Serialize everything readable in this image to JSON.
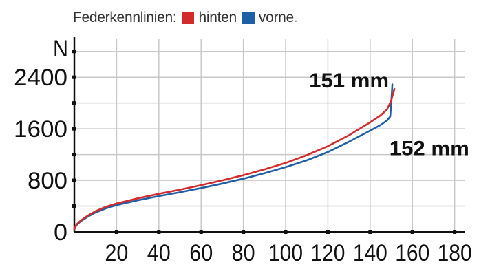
{
  "chart_data": {
    "type": "line",
    "legend_title": "Federkennlinien:",
    "ylabel": "N",
    "xlim": [
      0,
      185
    ],
    "ylim": [
      0,
      3000
    ],
    "x_ticks": [
      20,
      40,
      60,
      80,
      100,
      120,
      140,
      160,
      180
    ],
    "y_ticks": [
      0,
      800,
      1600,
      2400
    ],
    "grid": true,
    "legend_position": "top-left",
    "series": [
      {
        "name": "hinten",
        "color": "#d22b2b",
        "x": [
          0,
          1,
          3,
          6,
          10,
          15,
          20,
          30,
          40,
          50,
          60,
          70,
          80,
          90,
          100,
          110,
          120,
          130,
          140,
          145,
          148,
          150,
          151.5
        ],
        "y": [
          40,
          115,
          175,
          245,
          320,
          390,
          440,
          520,
          590,
          655,
          725,
          800,
          880,
          970,
          1070,
          1190,
          1330,
          1500,
          1700,
          1810,
          1900,
          2040,
          2220
        ]
      },
      {
        "name": "vorne",
        "color": "#1f5fa6",
        "x": [
          0,
          1,
          3,
          6,
          10,
          15,
          20,
          30,
          40,
          50,
          60,
          70,
          80,
          90,
          100,
          110,
          120,
          130,
          140,
          145,
          148,
          149.5,
          150,
          150.5
        ],
        "y": [
          40,
          105,
          165,
          230,
          300,
          365,
          415,
          490,
          555,
          615,
          680,
          750,
          825,
          910,
          1005,
          1110,
          1240,
          1400,
          1570,
          1660,
          1730,
          1790,
          2000,
          2290
        ]
      }
    ],
    "annotations": [
      {
        "text": "151 mm",
        "x": 130,
        "y": 2240
      },
      {
        "text": "152 mm",
        "x": 168,
        "y": 1190
      }
    ]
  }
}
